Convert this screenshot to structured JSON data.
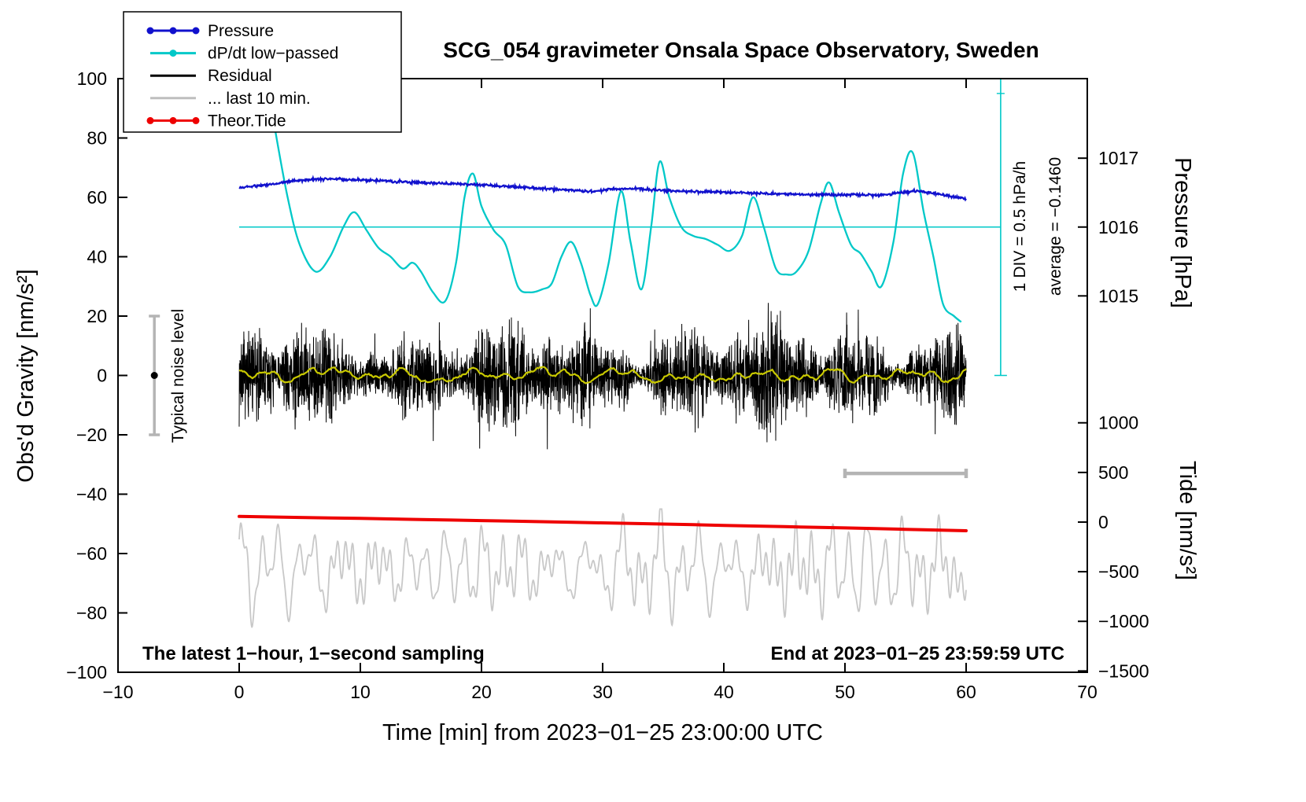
{
  "title": "SCG_054 gravimeter Onsala Space Observatory, Sweden",
  "annotations": {
    "div_text": "1 DIV = 0.5 hPa/h",
    "average_text": "average = −0.1460",
    "noise_text": "Typical noise level",
    "sampling_text": "The latest 1−hour, 1−second sampling",
    "end_text": "End at 2023−01−25 23:59:59 UTC"
  },
  "legend": {
    "items": [
      {
        "label": "Pressure",
        "color": "#1111cd",
        "dots": 3
      },
      {
        "label": "dP/dt low−passed",
        "color": "#00c8c8",
        "dots": 1
      },
      {
        "label": "Residual",
        "color": "#000000",
        "dots": 0
      },
      {
        "label": "... last 10 min.",
        "color": "#bebebe",
        "dots": 0
      },
      {
        "label": "Theor.Tide",
        "color": "#ee0000",
        "dots": 3
      }
    ]
  },
  "colors": {
    "pressure": "#1111cd",
    "dpdt": "#00c8c8",
    "residual": "#000000",
    "residual_mean": "#c8c800",
    "last10": "#c8c8c8",
    "tide": "#ee0000",
    "bars": "#b4b4b4",
    "frame": "#000000"
  },
  "chart_data": {
    "type": "line",
    "title": "SCG_054 gravimeter Onsala Space Observatory, Sweden",
    "xlabel": "Time [min] from 2023−01−25 23:00:00 UTC",
    "axes": {
      "x": {
        "range": [
          -10,
          70
        ],
        "tick_values": [
          -10,
          0,
          10,
          20,
          30,
          40,
          50,
          60,
          70
        ],
        "tick_labels": [
          "−10",
          "0",
          "10",
          "20",
          "30",
          "40",
          "50",
          "60",
          "70"
        ]
      },
      "gravity": {
        "label": "Obs'd Gravity [nm/s²]",
        "range": [
          -100,
          100
        ],
        "tick_values": [
          100,
          80,
          60,
          40,
          20,
          0,
          -20,
          -40,
          -60,
          -80,
          -100
        ],
        "tick_labels": [
          "100",
          "80",
          "60",
          "40",
          "20",
          "0",
          "−20",
          "−40",
          "−60",
          "−80",
          "−100"
        ]
      },
      "pressure": {
        "label": "Pressure [hPa]",
        "tick_values": [
          1017,
          1016,
          1015
        ],
        "tick_labels": [
          "1017",
          "1016",
          "1015"
        ],
        "gravity_per_hPa": 23.2,
        "ref": {
          "hPa": 1016,
          "gravity": 50
        }
      },
      "tide": {
        "label": "Tide [nm/s²]",
        "tick_values": [
          1000,
          500,
          0,
          -500,
          -1000,
          -1500
        ],
        "tick_labels": [
          "1000",
          "500",
          "0",
          "−500",
          "−1000",
          "−1500"
        ],
        "gravity_per_unit": 0.033445,
        "ref": {
          "tide": 0,
          "gravity": -49.4
        }
      }
    },
    "series": [
      {
        "name": "Pressure",
        "axis": "pressure",
        "color": "#1111cd",
        "x": [
          0,
          1,
          2,
          3,
          4,
          5,
          7,
          9,
          11,
          13,
          15,
          17,
          19,
          21,
          23,
          25,
          27,
          29,
          30,
          31,
          33,
          35,
          37,
          39,
          41,
          43,
          45,
          47,
          49,
          51,
          53,
          55,
          56,
          57,
          58,
          59,
          60
        ],
        "y_hPa": [
          1016.57,
          1016.59,
          1016.61,
          1016.63,
          1016.66,
          1016.68,
          1016.7,
          1016.69,
          1016.68,
          1016.66,
          1016.65,
          1016.63,
          1016.62,
          1016.6,
          1016.58,
          1016.56,
          1016.54,
          1016.52,
          1016.53,
          1016.56,
          1016.55,
          1016.53,
          1016.52,
          1016.51,
          1016.5,
          1016.49,
          1016.48,
          1016.47,
          1016.47,
          1016.47,
          1016.46,
          1016.51,
          1016.53,
          1016.5,
          1016.47,
          1016.44,
          1016.41
        ],
        "noise_sd_hPa": 0.015
      },
      {
        "name": "dP/dt low-passed",
        "axis": "gravity",
        "color": "#00c8c8",
        "units_note": "plotted on gravity axis; 1 DIV = 0.5 hPa/h; horizontal line at 50 marks average −0.1460 hPa/h",
        "average_line_y": 50,
        "x": [
          2.3,
          3,
          4,
          5,
          6.3,
          7.5,
          8.6,
          9.5,
          10.5,
          11.5,
          12.5,
          13.5,
          14.3,
          15,
          16,
          17,
          17.9,
          18.6,
          19.3,
          20,
          21,
          22,
          23,
          24,
          25,
          25.8,
          26.6,
          27.4,
          28.2,
          29,
          29.6,
          30.5,
          31.5,
          32.3,
          33.2,
          34,
          34.7,
          35.5,
          36.5,
          37.5,
          38.5,
          39.5,
          40.5,
          41.5,
          42.4,
          43.3,
          44.3,
          45.2,
          46,
          47,
          48,
          48.7,
          49.5,
          50.5,
          51.3,
          52.2,
          53,
          54,
          54.8,
          55.6,
          56.5,
          57.3,
          58.1,
          59,
          59.6
        ],
        "y": [
          100,
          82,
          60,
          44,
          35,
          40,
          50,
          55,
          49,
          43,
          40,
          36,
          38,
          35,
          28,
          25,
          38,
          60,
          68,
          57,
          49,
          44,
          30,
          28,
          29,
          31,
          40,
          45,
          38,
          27,
          24,
          38,
          62,
          45,
          29,
          50,
          72,
          60,
          50,
          47,
          46,
          44,
          42,
          47,
          60,
          50,
          36,
          34,
          35,
          42,
          58,
          65,
          55,
          44,
          41,
          35,
          30,
          45,
          68,
          75,
          55,
          40,
          24,
          20,
          18
        ]
      },
      {
        "name": "Residual",
        "axis": "gravity",
        "color": "#000000",
        "synthetic": {
          "seed": 7,
          "x_start": 0,
          "x_end": 60,
          "samples_per_min": 60,
          "mean": 0,
          "typical_amplitude": 12,
          "max_amplitude": 33
        }
      },
      {
        "name": "Residual 1-min mean",
        "axis": "gravity",
        "color": "#c8c800",
        "synthetic": {
          "seed": 3,
          "mean": 0,
          "amplitude": 2
        }
      },
      {
        "name": "... last 10 min.",
        "axis": "gravity",
        "color": "#c8c8c8",
        "synthetic": {
          "seed": 11,
          "mean": -65,
          "min": -89,
          "max": -45
        }
      },
      {
        "name": "Theor.Tide",
        "axis": "tide",
        "color": "#ee0000",
        "x": [
          0,
          5,
          10,
          15,
          20,
          25,
          30,
          35,
          40,
          45,
          50,
          55,
          60
        ],
        "y": [
          57,
          47,
          37,
          26,
          15,
          4,
          -8,
          -20,
          -33,
          -46,
          -59,
          -73,
          -87
        ]
      }
    ],
    "extras": {
      "noise_bar": {
        "x": -7,
        "gravity_span": [
          -20,
          20
        ]
      },
      "ten_min_bar": {
        "x_span": [
          50,
          60
        ],
        "gravity": -33
      },
      "div_scale_line": {
        "x": 62.85,
        "gravity_span": [
          0,
          100
        ]
      }
    }
  }
}
